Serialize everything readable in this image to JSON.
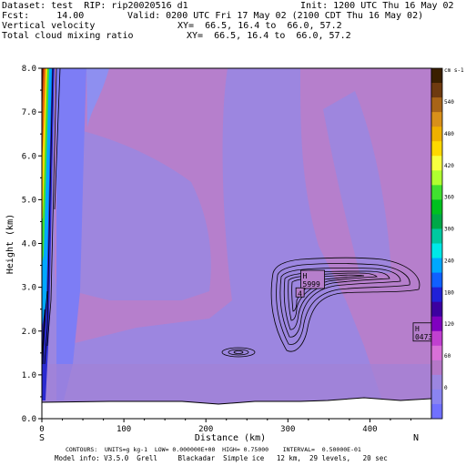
{
  "header": {
    "dataset": "Dataset: test  RIP: rip20020516 d1",
    "init": "Init: 1200 UTC Thu 16 May 02",
    "fcst": "Fcst:     14.00",
    "valid": "Valid: 0200 UTC Fri 17 May 02 (2100 CDT Thu 16 May 02)",
    "field1": "Vertical velocity",
    "xy1": "XY=  66.5, 16.4 to  66.0, 57.2",
    "field2": "Total cloud mixing ratio",
    "xy2": "XY=  66.5, 16.4 to  66.0, 57.2"
  },
  "footer": {
    "line1": "CONTOURS:  UNITS=g kg-1  LOW= 0.000000E+00  HIGH= 0.75000    INTERVAL=  0.50000E-01",
    "line2": "Model info: V3.5.0  Grell     Blackadar  Simple ice   12 km,  29 levels,   20 sec"
  },
  "chart_data": {
    "type": "cross-section",
    "xlabel": "Distance (km)",
    "ylabel": "Height (km)",
    "xlim": [
      0,
      475
    ],
    "ylim": [
      0,
      8
    ],
    "xticks": [
      "0",
      "100",
      "200",
      "300",
      "400"
    ],
    "xtick_values": [
      0,
      100,
      200,
      300,
      400
    ],
    "yticks": [
      "0.0",
      "1.0",
      "2.0",
      "3.0",
      "4.0",
      "5.0",
      "6.0",
      "7.0",
      "8.0"
    ],
    "ytick_values": [
      0,
      1,
      2,
      3,
      4,
      5,
      6,
      7,
      8
    ],
    "left_end": "S",
    "right_end": "N",
    "annotations": [
      {
        "label": "H",
        "value": "5999",
        "x": 318,
        "y": 3.2
      },
      {
        "label": "4",
        "value": "",
        "x": 312,
        "y": 2.8
      },
      {
        "label": "H",
        "value": "0473",
        "x": 455,
        "y": 2.0
      }
    ],
    "colorbar": {
      "unit": "cm s-1",
      "labels": [
        "540",
        "480",
        "420",
        "360",
        "300",
        "240",
        "180",
        "120",
        "60",
        "0"
      ],
      "colors": [
        "#3a1f00",
        "#6e3a10",
        "#a86418",
        "#d8901a",
        "#f0b000",
        "#ffd800",
        "#f8ff40",
        "#b0ff30",
        "#40e030",
        "#00c020",
        "#00a848",
        "#00c8a0",
        "#00e8e8",
        "#00a8ff",
        "#1060ff",
        "#2020d8",
        "#3c00a0",
        "#8000c0",
        "#c040d0",
        "#d870d8",
        "#b478c8",
        "#9c86e0",
        "#8a84f0",
        "#7070ff"
      ]
    }
  }
}
